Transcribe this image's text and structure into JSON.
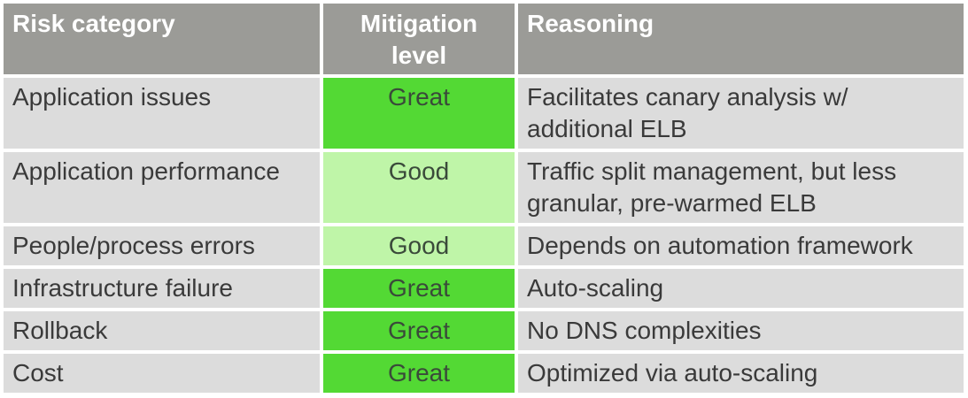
{
  "table": {
    "headers": [
      "Risk category",
      "Mitigation level",
      "Reasoning"
    ],
    "rows": [
      {
        "category": "Application issues",
        "level": "Great",
        "reasoning": "Facilitates canary analysis w/ additional ELB"
      },
      {
        "category": "Application performance",
        "level": "Good",
        "reasoning": "Traffic split management, but less granular, pre-warmed ELB"
      },
      {
        "category": "People/process errors",
        "level": "Good",
        "reasoning": "Depends on automation framework"
      },
      {
        "category": "Infrastructure failure",
        "level": "Great",
        "reasoning": "Auto-scaling"
      },
      {
        "category": "Rollback",
        "level": "Great",
        "reasoning": "No DNS complexities"
      },
      {
        "category": "Cost",
        "level": "Great",
        "reasoning": "Optimized via auto-scaling"
      }
    ]
  },
  "colors": {
    "header_bg": "#9b9b97",
    "row_bg": "#dcdcdc",
    "great": "#53d934",
    "good": "#bff5a8"
  }
}
